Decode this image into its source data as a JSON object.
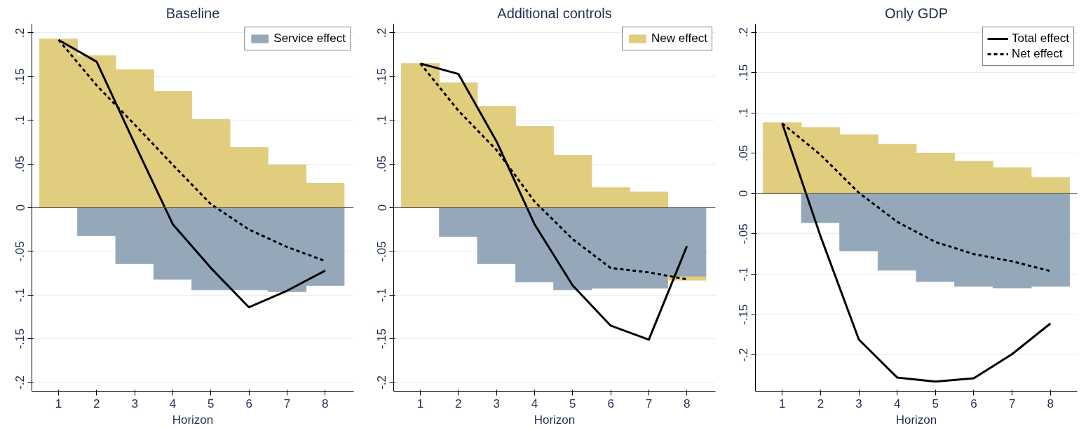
{
  "chart_data": [
    {
      "type": "bar",
      "title": "Baseline",
      "xlabel": "Horizon",
      "x": [
        1,
        2,
        3,
        4,
        5,
        6,
        7,
        8
      ],
      "xlim": [
        0.3,
        8.75
      ],
      "xticks": [
        1,
        2,
        3,
        4,
        5,
        6,
        7,
        8
      ],
      "ylim": [
        -0.21,
        0.21
      ],
      "yticks": [
        {
          "value": -0.2,
          "label": "-.2"
        },
        {
          "value": -0.15,
          "label": "-.15"
        },
        {
          "value": -0.1,
          "label": "-.1"
        },
        {
          "value": -0.05,
          "label": "-.05"
        },
        0,
        {
          "value": 0.05,
          "label": ".05"
        },
        {
          "value": 0.1,
          "label": ".1"
        },
        {
          "value": 0.15,
          "label": ".15"
        },
        {
          "value": 0.2,
          "label": ".2"
        }
      ],
      "grid": "y",
      "legend": "top right",
      "ref_lines": [
        {
          "axis": "y",
          "value": 0,
          "color": "#555555"
        }
      ],
      "stacked": true,
      "series": [
        {
          "type": "bar",
          "color": "#e1cd7e",
          "values": [
            0.193,
            0.174,
            0.158,
            0.133,
            0.101,
            0.069,
            0.049,
            0.028
          ]
        },
        {
          "type": "bar",
          "name": "Service effect",
          "color": "#94a8ba",
          "values": [
            null,
            -0.032,
            -0.064,
            -0.082,
            -0.094,
            -0.094,
            -0.096,
            -0.089
          ]
        },
        {
          "type": "line",
          "color": "#000000",
          "line_style": "solid",
          "values": [
            0.192,
            0.167,
            0.073,
            -0.019,
            -0.069,
            -0.114,
            -0.095,
            -0.072
          ]
        },
        {
          "type": "line",
          "color": "#000000",
          "line_style": "dashed",
          "values": [
            0.192,
            0.14,
            0.095,
            0.049,
            0.004,
            -0.025,
            -0.045,
            -0.061
          ]
        }
      ]
    },
    {
      "type": "bar",
      "title": "Additional controls",
      "xlabel": "Horizon",
      "x": [
        1,
        2,
        3,
        4,
        5,
        6,
        7,
        8
      ],
      "xlim": [
        0.3,
        8.75
      ],
      "xticks": [
        1,
        2,
        3,
        4,
        5,
        6,
        7,
        8
      ],
      "ylim": [
        -0.21,
        0.21
      ],
      "yticks": [
        {
          "value": -0.2,
          "label": "-.2"
        },
        {
          "value": -0.15,
          "label": "-.15"
        },
        {
          "value": -0.1,
          "label": "-.1"
        },
        {
          "value": -0.05,
          "label": "-.05"
        },
        0,
        {
          "value": 0.05,
          "label": ".05"
        },
        {
          "value": 0.1,
          "label": ".1"
        },
        {
          "value": 0.15,
          "label": ".15"
        },
        {
          "value": 0.2,
          "label": ".2"
        }
      ],
      "grid": "y",
      "legend": "top right",
      "ref_lines": [
        {
          "axis": "y",
          "value": 0,
          "color": "#555555"
        }
      ],
      "stacked": true,
      "series": [
        {
          "type": "bar",
          "color": "#94a8ba",
          "values": [
            null,
            -0.033,
            -0.064,
            -0.085,
            -0.094,
            -0.092,
            -0.092,
            -0.079
          ]
        },
        {
          "type": "bar",
          "name": "New effect",
          "color": "#e1cd7e",
          "values": [
            0.165,
            0.143,
            0.116,
            0.093,
            0.06,
            0.023,
            0.018,
            -0.004
          ]
        },
        {
          "type": "line",
          "color": "#000000",
          "line_style": "solid",
          "values": [
            0.165,
            0.153,
            0.076,
            -0.019,
            -0.089,
            -0.135,
            -0.151,
            -0.044
          ]
        },
        {
          "type": "line",
          "color": "#000000",
          "line_style": "dashed",
          "values": [
            0.165,
            0.111,
            0.066,
            0.007,
            -0.036,
            -0.069,
            -0.074,
            -0.082
          ]
        }
      ]
    },
    {
      "type": "bar",
      "title": "Only GDP",
      "xlabel": "Horizon",
      "x": [
        1,
        2,
        3,
        4,
        5,
        6,
        7,
        8
      ],
      "xlim": [
        0.3,
        8.7
      ],
      "xticks": [
        1,
        2,
        3,
        4,
        5,
        6,
        7,
        8
      ],
      "ylim": [
        -0.245,
        0.21
      ],
      "yticks": [
        {
          "value": -0.2,
          "label": "-.2"
        },
        {
          "value": -0.15,
          "label": "-.15"
        },
        {
          "value": -0.1,
          "label": "-.1"
        },
        {
          "value": -0.05,
          "label": "-.05"
        },
        0,
        {
          "value": 0.05,
          "label": ".05"
        },
        {
          "value": 0.1,
          "label": ".1"
        },
        {
          "value": 0.15,
          "label": ".15"
        },
        {
          "value": 0.2,
          "label": ".2"
        }
      ],
      "grid": "y",
      "legend": "top right",
      "ref_lines": [
        {
          "axis": "y",
          "value": 0,
          "color": "#555555"
        }
      ],
      "stacked": true,
      "series": [
        {
          "type": "bar",
          "color": "#e1cd7e",
          "values": [
            0.088,
            0.082,
            0.073,
            0.061,
            0.05,
            0.04,
            0.032,
            0.02
          ]
        },
        {
          "type": "bar",
          "color": "#94a8ba",
          "values": [
            null,
            -0.036,
            -0.071,
            -0.095,
            -0.109,
            -0.115,
            -0.117,
            -0.115
          ]
        },
        {
          "type": "line",
          "name": "Total effect",
          "color": "#000000",
          "line_style": "solid",
          "values": [
            0.087,
            -0.053,
            -0.181,
            -0.228,
            -0.233,
            -0.229,
            -0.199,
            -0.161
          ]
        },
        {
          "type": "line",
          "name": "Net effect",
          "color": "#000000",
          "line_style": "dashed",
          "values": [
            0.087,
            0.048,
            0.001,
            -0.035,
            -0.06,
            -0.075,
            -0.084,
            -0.096
          ]
        }
      ]
    }
  ]
}
